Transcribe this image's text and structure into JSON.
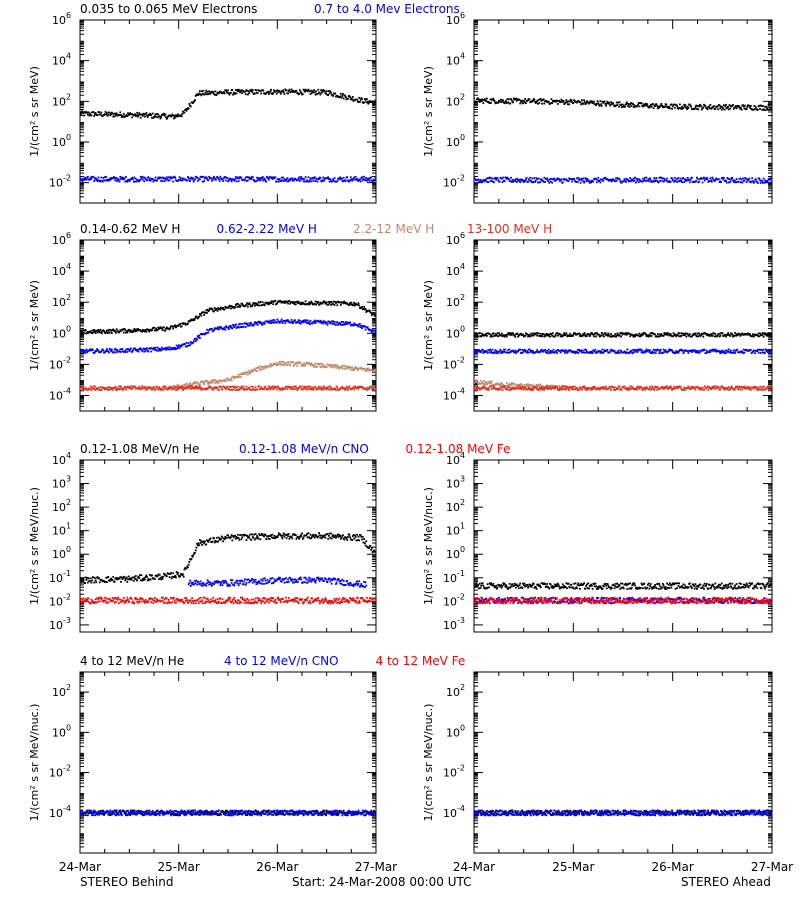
{
  "figure": {
    "footer": {
      "left": "STEREO Behind",
      "center": "Start: 24-Mar-2008 00:00 UTC",
      "right": "STEREO Ahead"
    },
    "x_tick_labels": [
      "24-Mar",
      "25-Mar",
      "26-Mar",
      "27-Mar"
    ]
  },
  "chart_data": [
    {
      "type": "scatter",
      "panel": "electrons-behind",
      "legend": [
        {
          "label": "0.035 to 0.065 MeV Electrons",
          "color": "#000000"
        },
        {
          "label": "0.7 to 4.0 Mev Electrons",
          "color": "#0000ff"
        }
      ],
      "ylabel": "1/(cm² s sr MeV)",
      "yscale": "log",
      "ylim": [
        0.001,
        1000000
      ],
      "y_ticks": [
        [
          "10",
          "6"
        ],
        [
          "10",
          "4"
        ],
        [
          "10",
          "2"
        ],
        [
          "10",
          "0"
        ],
        [
          "10",
          "-2"
        ]
      ],
      "y_tick_exponents": [
        6,
        4,
        2,
        0,
        -2
      ],
      "x_tick_labels": [
        "24-Mar",
        "25-Mar",
        "26-Mar",
        "27-Mar"
      ],
      "xlim": [
        0,
        3
      ],
      "series": [
        {
          "name": "0.035 to 0.065 MeV Electrons",
          "color": "#000000",
          "x": [
            0,
            0.5,
            0.95,
            1.05,
            1.2,
            1.5,
            2.0,
            2.5,
            2.9,
            3.0
          ],
          "y": [
            25,
            22,
            18,
            25,
            250,
            280,
            300,
            280,
            100,
            90
          ]
        },
        {
          "name": "0.7 to 4.0 Mev Electrons",
          "color": "#0000ff",
          "x": [
            0,
            1,
            2,
            3
          ],
          "y": [
            0.015,
            0.015,
            0.015,
            0.015
          ]
        }
      ]
    },
    {
      "type": "scatter",
      "panel": "electrons-ahead",
      "legend": [],
      "ylabel": "1/(cm² s sr MeV)",
      "yscale": "log",
      "ylim": [
        0.001,
        1000000
      ],
      "y_ticks": [
        [
          "10",
          "6"
        ],
        [
          "10",
          "4"
        ],
        [
          "10",
          "2"
        ],
        [
          "10",
          "0"
        ],
        [
          "10",
          "-2"
        ]
      ],
      "y_tick_exponents": [
        6,
        4,
        2,
        0,
        -2
      ],
      "x_tick_labels": [
        "24-Mar",
        "25-Mar",
        "26-Mar",
        "27-Mar"
      ],
      "xlim": [
        0,
        3
      ],
      "series": [
        {
          "name": "0.035 to 0.065 MeV Electrons",
          "color": "#000000",
          "x": [
            0,
            1,
            1.5,
            2,
            3
          ],
          "y": [
            110,
            95,
            70,
            55,
            50
          ]
        },
        {
          "name": "0.7 to 4.0 Mev Electrons",
          "color": "#0000ff",
          "x": [
            0,
            1,
            2,
            3
          ],
          "y": [
            0.014,
            0.013,
            0.014,
            0.013
          ]
        }
      ]
    },
    {
      "type": "scatter",
      "panel": "protons-behind",
      "legend": [
        {
          "label": "0.14-0.62 MeV H",
          "color": "#000000"
        },
        {
          "label": "0.62-2.22 MeV H",
          "color": "#0000ff"
        },
        {
          "label": "2.2-12 MeV H",
          "color": "#c08a6e"
        },
        {
          "label": "13-100 MeV H",
          "color": "#e0301e"
        }
      ],
      "ylabel": "1/(cm² s sr MeV)",
      "yscale": "log",
      "ylim": [
        1e-05,
        1000000
      ],
      "y_ticks": [
        [
          "10",
          "6"
        ],
        [
          "10",
          "4"
        ],
        [
          "10",
          "2"
        ],
        [
          "10",
          "0"
        ],
        [
          "10",
          "-2"
        ],
        [
          "10",
          "-4"
        ]
      ],
      "y_tick_exponents": [
        6,
        4,
        2,
        0,
        -2,
        -4
      ],
      "x_tick_labels": [
        "24-Mar",
        "25-Mar",
        "26-Mar",
        "27-Mar"
      ],
      "xlim": [
        0,
        3
      ],
      "series": [
        {
          "name": "0.14-0.62 MeV H",
          "color": "#000000",
          "x": [
            0,
            0.5,
            0.9,
            1.1,
            1.3,
            1.6,
            2.0,
            2.4,
            2.8,
            2.95,
            3.0
          ],
          "y": [
            1.2,
            1.5,
            2,
            5,
            30,
            60,
            100,
            90,
            80,
            20,
            15
          ]
        },
        {
          "name": "0.62-2.22 MeV H",
          "color": "#0000ff",
          "x": [
            0,
            0.5,
            0.9,
            1.1,
            1.3,
            1.6,
            2.0,
            2.4,
            2.8,
            2.95,
            3.0
          ],
          "y": [
            0.07,
            0.08,
            0.1,
            0.2,
            1.5,
            3,
            6,
            5,
            4,
            1.5,
            1.2
          ]
        },
        {
          "name": "2.2-12 MeV H",
          "color": "#c08a6e",
          "x": [
            0.9,
            1.2,
            1.5,
            1.8,
            2.0,
            2.3,
            2.6,
            3.0
          ],
          "y": [
            0.0003,
            0.0006,
            0.001,
            0.005,
            0.012,
            0.01,
            0.007,
            0.004
          ]
        },
        {
          "name": "13-100 MeV H",
          "color": "#e0301e",
          "x": [
            0,
            1,
            2,
            3
          ],
          "y": [
            0.0003,
            0.0003,
            0.0003,
            0.0003
          ]
        }
      ]
    },
    {
      "type": "scatter",
      "panel": "protons-ahead",
      "legend": [],
      "ylabel": "1/(cm² s sr MeV)",
      "yscale": "log",
      "ylim": [
        1e-05,
        1000000
      ],
      "y_ticks": [
        [
          "10",
          "6"
        ],
        [
          "10",
          "4"
        ],
        [
          "10",
          "2"
        ],
        [
          "10",
          "0"
        ],
        [
          "10",
          "-2"
        ],
        [
          "10",
          "-4"
        ]
      ],
      "y_tick_exponents": [
        6,
        4,
        2,
        0,
        -2,
        -4
      ],
      "x_tick_labels": [
        "24-Mar",
        "25-Mar",
        "26-Mar",
        "27-Mar"
      ],
      "xlim": [
        0,
        3
      ],
      "series": [
        {
          "name": "0.14-0.62 MeV H",
          "color": "#000000",
          "x": [
            0,
            1,
            2,
            3
          ],
          "y": [
            0.8,
            0.8,
            0.8,
            0.8
          ]
        },
        {
          "name": "0.62-2.22 MeV H",
          "color": "#0000ff",
          "x": [
            0,
            1,
            2,
            3
          ],
          "y": [
            0.07,
            0.07,
            0.07,
            0.07
          ]
        },
        {
          "name": "2.2-12 MeV H",
          "color": "#c08a6e",
          "x": [
            0,
            0.3,
            0.6,
            1
          ],
          "y": [
            0.0008,
            0.0005,
            0.0004,
            0.0003
          ]
        },
        {
          "name": "13-100 MeV H",
          "color": "#e0301e",
          "x": [
            0,
            1,
            2,
            3
          ],
          "y": [
            0.0003,
            0.0003,
            0.0003,
            0.0003
          ]
        }
      ]
    },
    {
      "type": "scatter",
      "panel": "heavy-ions-low-behind",
      "legend": [
        {
          "label": "0.12-1.08 MeV/n He",
          "color": "#000000"
        },
        {
          "label": "0.12-1.08 MeV/n CNO",
          "color": "#0000ff"
        },
        {
          "label": "0.12-1.08 MeV Fe",
          "color": "#ff0000"
        }
      ],
      "ylabel": "1/(cm² s sr MeV/nuc.)",
      "yscale": "log",
      "ylim": [
        0.0005,
        10000
      ],
      "y_ticks": [
        [
          "10",
          "4"
        ],
        [
          "10",
          "3"
        ],
        [
          "10",
          "2"
        ],
        [
          "10",
          "1"
        ],
        [
          "10",
          "0"
        ],
        [
          "10",
          "-1"
        ],
        [
          "10",
          "-2"
        ],
        [
          "10",
          "-3"
        ]
      ],
      "y_tick_exponents": [
        4,
        3,
        2,
        1,
        0,
        -1,
        -2,
        -3
      ],
      "x_tick_labels": [
        "24-Mar",
        "25-Mar",
        "26-Mar",
        "27-Mar"
      ],
      "xlim": [
        0,
        3
      ],
      "series": [
        {
          "name": "0.12-1.08 MeV/n He",
          "color": "#000000",
          "x": [
            0,
            0.5,
            0.9,
            1.05,
            1.2,
            1.5,
            2.0,
            2.5,
            2.85,
            3.0
          ],
          "y": [
            0.08,
            0.09,
            0.12,
            0.15,
            3,
            5,
            6,
            6,
            5,
            1
          ]
        },
        {
          "name": "0.12-1.08 MeV/n CNO",
          "color": "#0000ff",
          "x": [
            1.1,
            1.5,
            2.0,
            2.5,
            2.9
          ],
          "y": [
            0.06,
            0.06,
            0.08,
            0.08,
            0.05
          ]
        },
        {
          "name": "0.12-1.08 MeV Fe",
          "color": "#ff0000",
          "x": [
            0,
            1,
            2,
            3
          ],
          "y": [
            0.011,
            0.011,
            0.011,
            0.011
          ]
        }
      ]
    },
    {
      "type": "scatter",
      "panel": "heavy-ions-low-ahead",
      "legend": [],
      "ylabel": "1/(cm² s sr MeV/nuc.)",
      "yscale": "log",
      "ylim": [
        0.0005,
        10000
      ],
      "y_ticks": [
        [
          "10",
          "4"
        ],
        [
          "10",
          "3"
        ],
        [
          "10",
          "2"
        ],
        [
          "10",
          "1"
        ],
        [
          "10",
          "0"
        ],
        [
          "10",
          "-1"
        ],
        [
          "10",
          "-2"
        ],
        [
          "10",
          "-3"
        ]
      ],
      "y_tick_exponents": [
        4,
        3,
        2,
        1,
        0,
        -1,
        -2,
        -3
      ],
      "x_tick_labels": [
        "24-Mar",
        "25-Mar",
        "26-Mar",
        "27-Mar"
      ],
      "xlim": [
        0,
        3
      ],
      "series": [
        {
          "name": "0.12-1.08 MeV/n He",
          "color": "#000000",
          "x": [
            0,
            1,
            2,
            3
          ],
          "y": [
            0.045,
            0.045,
            0.045,
            0.045
          ]
        },
        {
          "name": "0.12-1.08 MeV/n CNO",
          "color": "#0000ff",
          "x": [
            0,
            1,
            2,
            3
          ],
          "y": [
            0.011,
            0.011,
            0.011,
            0.011
          ]
        },
        {
          "name": "0.12-1.08 MeV Fe",
          "color": "#ff0000",
          "x": [
            0,
            1,
            2,
            3
          ],
          "y": [
            0.011,
            0.011,
            0.011,
            0.011
          ]
        }
      ]
    },
    {
      "type": "scatter",
      "panel": "heavy-ions-high-behind",
      "legend": [
        {
          "label": "4 to 12 MeV/n He",
          "color": "#000000"
        },
        {
          "label": "4 to 12 MeV/n CNO",
          "color": "#0000ff"
        },
        {
          "label": "4 to 12 MeV Fe",
          "color": "#ff0000"
        }
      ],
      "ylabel": "1/(cm² s sr MeV/nuc.)",
      "yscale": "log",
      "ylim": [
        1e-06,
        1000
      ],
      "y_ticks": [
        [
          "10",
          "2"
        ],
        [
          "10",
          "0"
        ],
        [
          "10",
          "-2"
        ],
        [
          "10",
          "-4"
        ]
      ],
      "y_tick_exponents": [
        2,
        0,
        -2,
        -4
      ],
      "x_tick_labels": [
        "24-Mar",
        "25-Mar",
        "26-Mar",
        "27-Mar"
      ],
      "xlim": [
        0,
        3
      ],
      "series": [
        {
          "name": "4 to 12 MeV/n He",
          "color": "#000000",
          "x": [
            0,
            1,
            2,
            3
          ],
          "y": [
            0.0001,
            0.0001,
            0.0001,
            0.0001
          ]
        },
        {
          "name": "4 to 12 MeV/n CNO",
          "color": "#0000ff",
          "x": [
            0,
            1,
            2,
            3
          ],
          "y": [
            0.0001,
            0.0001,
            0.0001,
            0.0001
          ]
        }
      ]
    },
    {
      "type": "scatter",
      "panel": "heavy-ions-high-ahead",
      "legend": [],
      "ylabel": "1/(cm² s sr MeV/nuc.)",
      "yscale": "log",
      "ylim": [
        1e-06,
        1000
      ],
      "y_ticks": [
        [
          "10",
          "2"
        ],
        [
          "10",
          "0"
        ],
        [
          "10",
          "-2"
        ],
        [
          "10",
          "-4"
        ]
      ],
      "y_tick_exponents": [
        2,
        0,
        -2,
        -4
      ],
      "x_tick_labels": [
        "24-Mar",
        "25-Mar",
        "26-Mar",
        "27-Mar"
      ],
      "xlim": [
        0,
        3
      ],
      "series": [
        {
          "name": "4 to 12 MeV/n He",
          "color": "#000000",
          "x": [
            0,
            1,
            2,
            3
          ],
          "y": [
            0.0001,
            0.0001,
            0.0001,
            0.0001
          ]
        },
        {
          "name": "4 to 12 MeV/n CNO",
          "color": "#0000ff",
          "x": [
            0,
            1,
            2,
            3
          ],
          "y": [
            0.0001,
            0.0001,
            0.0001,
            0.0001
          ]
        }
      ]
    }
  ]
}
